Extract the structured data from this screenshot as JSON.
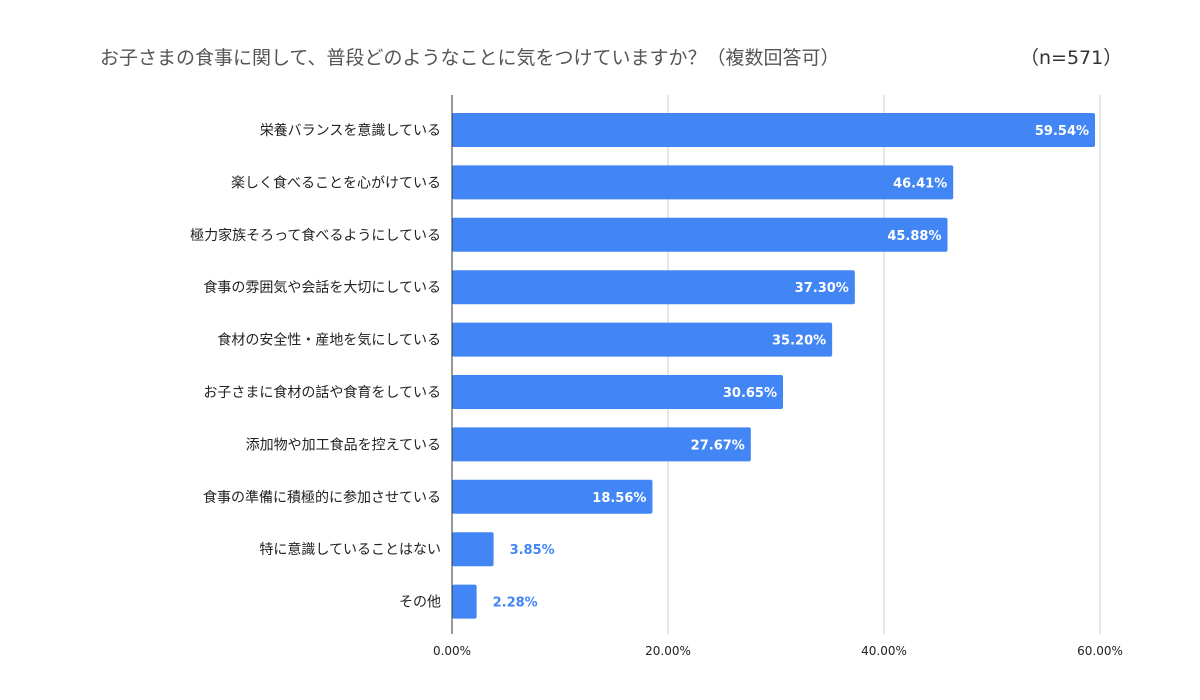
{
  "chart_data": {
    "type": "bar",
    "orientation": "horizontal",
    "title": "お子さまの食事に関して、普段どのようなことに気をつけていますか？（複数回答可）",
    "note": "（n=571）",
    "categories": [
      "栄養バランスを意識している",
      "楽しく食べることを心がけている",
      "極力家族そろって食べるようにしている",
      "食事の雰囲気や会話を大切にしている",
      "食材の安全性・産地を気にしている",
      "お子さまに食材の話や食育をしている",
      "添加物や加工食品を控えている",
      "食事の準備に積極的に参加させている",
      "特に意識していることはない",
      "その他"
    ],
    "values": [
      59.54,
      46.41,
      45.88,
      37.3,
      35.2,
      30.65,
      27.67,
      18.56,
      3.85,
      2.28
    ],
    "data_labels": [
      "59.54%",
      "46.41%",
      "45.88%",
      "37.30%",
      "35.20%",
      "30.65%",
      "27.67%",
      "18.56%",
      "3.85%",
      "2.28%"
    ],
    "xlim": [
      0,
      60
    ],
    "xticks": [
      0,
      20,
      40,
      60
    ],
    "xtick_labels": [
      "0.00%",
      "20.00%",
      "40.00%",
      "60.00%"
    ],
    "grid": true,
    "bar_color": "#4285f4"
  }
}
